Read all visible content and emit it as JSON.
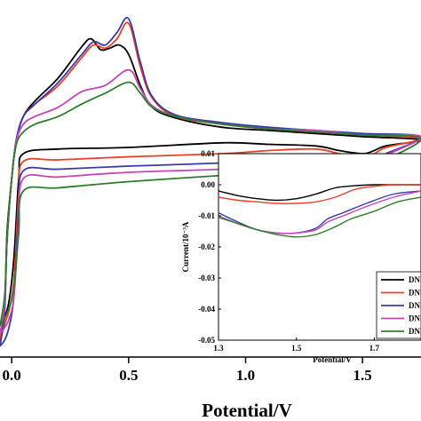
{
  "chart_data": [
    {
      "type": "line",
      "xlabel": "Potential/V",
      "ylabel": "",
      "xlim": [
        -0.05,
        1.75
      ],
      "ylim": [
        -0.135,
        0.095
      ],
      "xticks": [
        "0.0",
        "0.5",
        "1.0",
        "1.5"
      ],
      "tick_values": [
        0.0,
        0.5,
        1.0,
        1.5
      ],
      "series": [
        {
          "color": "#000000",
          "forward": [
            [
              -0.05,
              -0.12
            ],
            [
              -0.03,
              -0.1
            ],
            [
              -0.02,
              -0.055
            ],
            [
              0.0,
              -0.02
            ],
            [
              0.02,
              0.005
            ],
            [
              0.05,
              0.02
            ],
            [
              0.1,
              0.03
            ],
            [
              0.2,
              0.045
            ],
            [
              0.3,
              0.065
            ],
            [
              0.34,
              0.07
            ],
            [
              0.38,
              0.063
            ],
            [
              0.42,
              0.064
            ],
            [
              0.46,
              0.066
            ],
            [
              0.5,
              0.06
            ],
            [
              0.55,
              0.04
            ],
            [
              0.6,
              0.026
            ],
            [
              0.7,
              0.019
            ],
            [
              0.9,
              0.013
            ],
            [
              1.1,
              0.011
            ],
            [
              1.3,
              0.009
            ],
            [
              1.5,
              0.007
            ],
            [
              1.75,
              0.005
            ]
          ],
          "reverse": [
            [
              1.75,
              0.005
            ],
            [
              1.6,
              0.001
            ],
            [
              1.55,
              -0.002
            ],
            [
              1.5,
              -0.004
            ],
            [
              1.4,
              -0.002
            ],
            [
              1.3,
              0.001
            ],
            [
              1.1,
              0.002
            ],
            [
              0.9,
              0.003
            ],
            [
              0.5,
              0.0
            ],
            [
              0.2,
              -0.001
            ],
            [
              0.05,
              -0.004
            ],
            [
              0.03,
              -0.02
            ],
            [
              0.01,
              -0.07
            ],
            [
              -0.01,
              -0.098
            ],
            [
              -0.03,
              -0.11
            ],
            [
              -0.05,
              -0.12
            ]
          ]
        },
        {
          "color": "#e8402a",
          "forward": [
            [
              -0.05,
              -0.125
            ],
            [
              -0.03,
              -0.1
            ],
            [
              -0.02,
              -0.06
            ],
            [
              0.0,
              -0.02
            ],
            [
              0.02,
              0.005
            ],
            [
              0.05,
              0.02
            ],
            [
              0.1,
              0.028
            ],
            [
              0.2,
              0.04
            ],
            [
              0.3,
              0.058
            ],
            [
              0.35,
              0.066
            ],
            [
              0.4,
              0.064
            ],
            [
              0.45,
              0.07
            ],
            [
              0.5,
              0.08
            ],
            [
              0.55,
              0.052
            ],
            [
              0.6,
              0.032
            ],
            [
              0.7,
              0.02
            ],
            [
              0.9,
              0.015
            ],
            [
              1.1,
              0.012
            ],
            [
              1.3,
              0.01
            ],
            [
              1.5,
              0.008
            ],
            [
              1.75,
              0.006
            ]
          ],
          "reverse": [
            [
              1.75,
              0.006
            ],
            [
              1.6,
              0.0
            ],
            [
              1.55,
              -0.004
            ],
            [
              1.5,
              -0.006
            ],
            [
              1.4,
              -0.004
            ],
            [
              1.3,
              -0.001
            ],
            [
              1.1,
              -0.002
            ],
            [
              0.9,
              -0.004
            ],
            [
              0.5,
              -0.006
            ],
            [
              0.2,
              -0.008
            ],
            [
              0.05,
              -0.009
            ],
            [
              0.03,
              -0.03
            ],
            [
              0.01,
              -0.085
            ],
            [
              -0.01,
              -0.104
            ],
            [
              -0.03,
              -0.114
            ],
            [
              -0.05,
              -0.125
            ]
          ]
        },
        {
          "color": "#3a3aa8",
          "forward": [
            [
              -0.05,
              -0.128
            ],
            [
              -0.03,
              -0.105
            ],
            [
              -0.02,
              -0.06
            ],
            [
              0.0,
              -0.02
            ],
            [
              0.02,
              0.005
            ],
            [
              0.05,
              0.02
            ],
            [
              0.1,
              0.028
            ],
            [
              0.2,
              0.042
            ],
            [
              0.3,
              0.06
            ],
            [
              0.35,
              0.068
            ],
            [
              0.4,
              0.066
            ],
            [
              0.45,
              0.074
            ],
            [
              0.5,
              0.083
            ],
            [
              0.55,
              0.055
            ],
            [
              0.6,
              0.033
            ],
            [
              0.7,
              0.021
            ],
            [
              0.9,
              0.016
            ],
            [
              1.1,
              0.013
            ],
            [
              1.3,
              0.011
            ],
            [
              1.5,
              0.009
            ],
            [
              1.75,
              0.007
            ]
          ],
          "reverse": [
            [
              1.75,
              0.007
            ],
            [
              1.6,
              -0.004
            ],
            [
              1.55,
              -0.008
            ],
            [
              1.5,
              -0.01
            ],
            [
              1.4,
              -0.008
            ],
            [
              1.3,
              -0.006
            ],
            [
              1.1,
              -0.008
            ],
            [
              0.9,
              -0.01
            ],
            [
              0.5,
              -0.012
            ],
            [
              0.2,
              -0.014
            ],
            [
              0.05,
              -0.015
            ],
            [
              0.03,
              -0.04
            ],
            [
              0.01,
              -0.095
            ],
            [
              -0.01,
              -0.115
            ],
            [
              -0.03,
              -0.124
            ],
            [
              -0.05,
              -0.128
            ]
          ]
        },
        {
          "color": "#c845b8",
          "forward": [
            [
              -0.05,
              -0.12
            ],
            [
              -0.03,
              -0.1
            ],
            [
              -0.02,
              -0.06
            ],
            [
              0.0,
              -0.02
            ],
            [
              0.02,
              0.004
            ],
            [
              0.05,
              0.015
            ],
            [
              0.1,
              0.02
            ],
            [
              0.2,
              0.026
            ],
            [
              0.3,
              0.036
            ],
            [
              0.4,
              0.04
            ],
            [
              0.5,
              0.05
            ],
            [
              0.55,
              0.038
            ],
            [
              0.6,
              0.027
            ],
            [
              0.7,
              0.02
            ],
            [
              0.9,
              0.015
            ],
            [
              1.1,
              0.012
            ],
            [
              1.3,
              0.011
            ],
            [
              1.5,
              0.008
            ],
            [
              1.75,
              0.007
            ]
          ],
          "reverse": [
            [
              1.75,
              0.007
            ],
            [
              1.6,
              -0.005
            ],
            [
              1.55,
              -0.01
            ],
            [
              1.5,
              -0.012
            ],
            [
              1.4,
              -0.01
            ],
            [
              1.3,
              -0.008
            ],
            [
              1.1,
              -0.012
            ],
            [
              0.9,
              -0.014
            ],
            [
              0.5,
              -0.016
            ],
            [
              0.2,
              -0.019
            ],
            [
              0.05,
              -0.02
            ],
            [
              0.03,
              -0.05
            ],
            [
              0.01,
              -0.095
            ],
            [
              -0.01,
              -0.11
            ],
            [
              -0.03,
              -0.116
            ],
            [
              -0.05,
              -0.12
            ]
          ]
        },
        {
          "color": "#2e7d2e",
          "forward": [
            [
              -0.05,
              -0.115
            ],
            [
              -0.03,
              -0.095
            ],
            [
              -0.02,
              -0.06
            ],
            [
              0.0,
              -0.02
            ],
            [
              0.02,
              0.002
            ],
            [
              0.05,
              0.01
            ],
            [
              0.1,
              0.015
            ],
            [
              0.2,
              0.02
            ],
            [
              0.3,
              0.028
            ],
            [
              0.4,
              0.035
            ],
            [
              0.5,
              0.042
            ],
            [
              0.55,
              0.035
            ],
            [
              0.6,
              0.026
            ],
            [
              0.7,
              0.02
            ],
            [
              0.9,
              0.015
            ],
            [
              1.1,
              0.012
            ],
            [
              1.3,
              0.01
            ],
            [
              1.5,
              0.008
            ],
            [
              1.75,
              0.006
            ]
          ],
          "reverse": [
            [
              1.75,
              0.006
            ],
            [
              1.6,
              -0.008
            ],
            [
              1.55,
              -0.012
            ],
            [
              1.5,
              -0.015
            ],
            [
              1.4,
              -0.013
            ],
            [
              1.3,
              -0.012
            ],
            [
              1.1,
              -0.016
            ],
            [
              0.9,
              -0.018
            ],
            [
              0.5,
              -0.022
            ],
            [
              0.2,
              -0.026
            ],
            [
              0.05,
              -0.028
            ],
            [
              0.03,
              -0.055
            ],
            [
              0.01,
              -0.09
            ],
            [
              -0.01,
              -0.103
            ],
            [
              -0.03,
              -0.11
            ],
            [
              -0.05,
              -0.115
            ]
          ]
        }
      ]
    },
    {
      "type": "line",
      "xlabel": "Potential/V",
      "ylabel": "Current/10⁻³A",
      "xlim": [
        1.3,
        1.82
      ],
      "ylim": [
        -0.05,
        0.01
      ],
      "xticks": [
        "1.3",
        "1.5",
        "1.7"
      ],
      "xtick_values": [
        1.3,
        1.5,
        1.7
      ],
      "yticks": [
        "0.01",
        "0.00",
        "-0.01",
        "-0.02",
        "-0.03",
        "-0.04",
        "-0.05"
      ],
      "ytick_values": [
        0.01,
        0.0,
        -0.01,
        -0.02,
        -0.03,
        -0.04,
        -0.05
      ],
      "legend": {
        "position": "bottom-right",
        "labels": [
          "DN",
          "DN",
          "DN",
          "DN",
          "DN"
        ]
      },
      "series": [
        {
          "color": "#000000",
          "points": [
            [
              1.3,
              -0.002
            ],
            [
              1.35,
              -0.0035
            ],
            [
              1.4,
              -0.0045
            ],
            [
              1.45,
              -0.005
            ],
            [
              1.5,
              -0.0045
            ],
            [
              1.55,
              -0.003
            ],
            [
              1.6,
              -0.001
            ],
            [
              1.65,
              -0.0003
            ],
            [
              1.7,
              0.0
            ],
            [
              1.75,
              0.0
            ],
            [
              1.82,
              0.0
            ]
          ]
        },
        {
          "color": "#e8402a",
          "points": [
            [
              1.3,
              -0.004
            ],
            [
              1.35,
              -0.005
            ],
            [
              1.4,
              -0.0055
            ],
            [
              1.45,
              -0.006
            ],
            [
              1.5,
              -0.006
            ],
            [
              1.55,
              -0.0055
            ],
            [
              1.6,
              -0.004
            ],
            [
              1.65,
              -0.0015
            ],
            [
              1.7,
              -0.0005
            ],
            [
              1.75,
              0.0
            ],
            [
              1.82,
              0.0
            ]
          ]
        },
        {
          "color": "#3a3aa8",
          "points": [
            [
              1.3,
              -0.009
            ],
            [
              1.35,
              -0.012
            ],
            [
              1.4,
              -0.0145
            ],
            [
              1.45,
              -0.0155
            ],
            [
              1.5,
              -0.0155
            ],
            [
              1.55,
              -0.014
            ],
            [
              1.58,
              -0.011
            ],
            [
              1.62,
              -0.009
            ],
            [
              1.68,
              -0.006
            ],
            [
              1.75,
              -0.003
            ],
            [
              1.82,
              -0.002
            ]
          ]
        },
        {
          "color": "#c845b8",
          "points": [
            [
              1.3,
              -0.01
            ],
            [
              1.35,
              -0.0125
            ],
            [
              1.4,
              -0.0145
            ],
            [
              1.45,
              -0.0155
            ],
            [
              1.5,
              -0.0155
            ],
            [
              1.55,
              -0.0145
            ],
            [
              1.58,
              -0.012
            ],
            [
              1.62,
              -0.01
            ],
            [
              1.68,
              -0.007
            ],
            [
              1.75,
              -0.004
            ],
            [
              1.82,
              -0.002
            ]
          ]
        },
        {
          "color": "#2e7d2e",
          "points": [
            [
              1.3,
              -0.0105
            ],
            [
              1.35,
              -0.0125
            ],
            [
              1.4,
              -0.0145
            ],
            [
              1.45,
              -0.016
            ],
            [
              1.5,
              -0.0168
            ],
            [
              1.55,
              -0.016
            ],
            [
              1.6,
              -0.0135
            ],
            [
              1.64,
              -0.011
            ],
            [
              1.7,
              -0.0085
            ],
            [
              1.76,
              -0.0055
            ],
            [
              1.82,
              -0.004
            ]
          ]
        }
      ]
    }
  ]
}
